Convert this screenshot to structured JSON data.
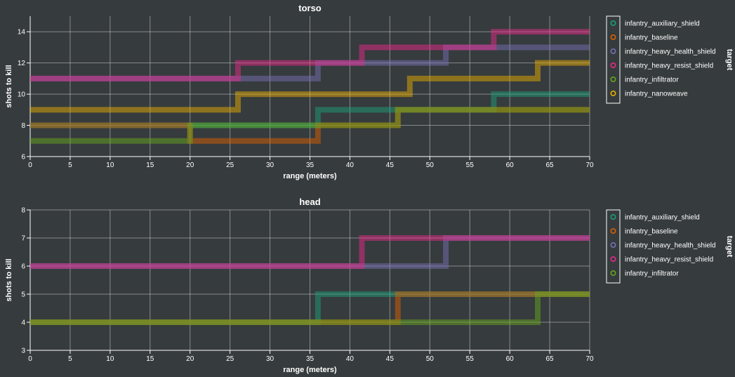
{
  "colors": {
    "background": "#363b3d",
    "plot_background": "#363b3d",
    "grid": "#cccccc",
    "text": "#ffffff",
    "series": {
      "infantry_auxiliary_shield": "#1b9e77",
      "infantry_baseline": "#d95f02",
      "infantry_heavy_health_shield": "#7570b3",
      "infantry_heavy_resist_shield": "#e7298a",
      "infantry_infiltrator": "#66a61e",
      "infantry_nanoweave": "#e6ab02"
    }
  },
  "chart_data": [
    {
      "type": "line",
      "step": true,
      "title": "torso",
      "xlabel": "range (meters)",
      "ylabel": "shots to kill",
      "xlim": [
        0,
        70
      ],
      "ylim": [
        6,
        15
      ],
      "xticks": [
        0,
        5,
        10,
        15,
        20,
        25,
        30,
        35,
        40,
        45,
        50,
        55,
        60,
        65,
        70
      ],
      "yticks": [
        6,
        8,
        10,
        12,
        14
      ],
      "grid": true,
      "legend": {
        "title": "target",
        "placement": "right"
      },
      "series": [
        {
          "name": "infantry_auxiliary_shield",
          "x": [
            0,
            36,
            58,
            70
          ],
          "y": [
            8,
            9,
            10,
            10
          ]
        },
        {
          "name": "infantry_baseline",
          "x": [
            0,
            20,
            36,
            40,
            46,
            58,
            63,
            70
          ],
          "y": [
            8,
            7,
            8,
            8,
            9,
            9,
            9,
            9
          ]
        },
        {
          "name": "infantry_heavy_health_shield",
          "x": [
            0,
            26,
            36,
            42,
            52,
            58,
            70
          ],
          "y": [
            11,
            11,
            12,
            12,
            13,
            13,
            13
          ]
        },
        {
          "name": "infantry_heavy_resist_shield",
          "x": [
            0,
            26,
            41.5,
            58,
            70
          ],
          "y": [
            11,
            12,
            13,
            14,
            14
          ]
        },
        {
          "name": "infantry_infiltrator",
          "x": [
            0,
            20,
            40.5,
            46,
            63.5,
            70
          ],
          "y": [
            7,
            8,
            8,
            9,
            9,
            9
          ]
        },
        {
          "name": "infantry_nanoweave",
          "x": [
            0,
            26,
            47.5,
            63.5,
            70
          ],
          "y": [
            9,
            10,
            11,
            12,
            12
          ]
        }
      ]
    },
    {
      "type": "line",
      "step": true,
      "title": "head",
      "xlabel": "range (meters)",
      "ylabel": "shots to kill",
      "xlim": [
        0,
        70
      ],
      "ylim": [
        3,
        8
      ],
      "xticks": [
        0,
        5,
        10,
        15,
        20,
        25,
        30,
        35,
        40,
        45,
        50,
        55,
        60,
        65,
        70
      ],
      "yticks": [
        3,
        4,
        5,
        6,
        7,
        8
      ],
      "grid": true,
      "legend": {
        "title": "target",
        "placement": "right"
      },
      "series": [
        {
          "name": "infantry_auxiliary_shield",
          "x": [
            0,
            36,
            70
          ],
          "y": [
            4,
            5,
            5
          ]
        },
        {
          "name": "infantry_baseline",
          "x": [
            0,
            46,
            70
          ],
          "y": [
            4,
            5,
            5
          ]
        },
        {
          "name": "infantry_heavy_health_shield",
          "x": [
            0,
            52,
            70
          ],
          "y": [
            6,
            7,
            7
          ]
        },
        {
          "name": "infantry_heavy_resist_shield",
          "x": [
            0,
            41.5,
            70
          ],
          "y": [
            6,
            7,
            7
          ]
        },
        {
          "name": "infantry_infiltrator",
          "x": [
            0,
            63.5,
            70
          ],
          "y": [
            4,
            5,
            5
          ]
        }
      ]
    }
  ]
}
